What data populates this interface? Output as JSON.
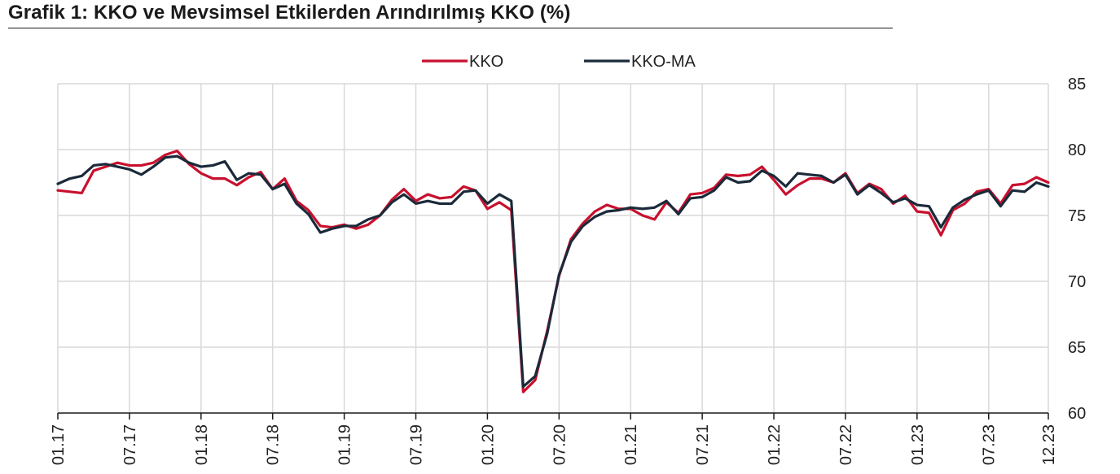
{
  "title": "Grafik 1: KKO ve Mevsimsel Etkilerden Arındırılmış KKO (%)",
  "colors": {
    "kko": "#c8102e",
    "kko_ma": "#1b2a3a",
    "grid": "#d9d9d9",
    "axis": "#1a1a1a"
  },
  "chart_data": {
    "type": "line",
    "title": "Grafik 1: KKO ve Mevsimsel Etkilerden Arındırılmış KKO (%)",
    "xlabel": "",
    "ylabel": "",
    "ylim": [
      60,
      85
    ],
    "yticks": [
      "60",
      "65",
      "70",
      "75",
      "80",
      "85"
    ],
    "y_axis_side": "right",
    "grid": true,
    "legend_position": "top-center",
    "x_start": "01.17",
    "x_end": "12.23",
    "xtick_labels": [
      "01.17",
      "07.17",
      "01.18",
      "07.18",
      "01.19",
      "07.19",
      "01.20",
      "07.20",
      "01.21",
      "07.21",
      "01.22",
      "07.22",
      "01.23",
      "07.23",
      "12.23"
    ],
    "series": [
      {
        "name": "KKO",
        "color": "#c8102e",
        "values": [
          76.9,
          76.8,
          76.7,
          78.4,
          78.7,
          79.0,
          78.8,
          78.8,
          79.0,
          79.6,
          79.9,
          78.9,
          78.2,
          77.8,
          77.8,
          77.3,
          77.9,
          78.3,
          77.0,
          77.8,
          76.1,
          75.4,
          74.2,
          74.1,
          74.3,
          74.0,
          74.3,
          75.0,
          76.2,
          77.0,
          76.1,
          76.6,
          76.3,
          76.4,
          77.2,
          76.9,
          75.5,
          76.0,
          75.4,
          61.6,
          62.5,
          66.2,
          70.4,
          73.2,
          74.4,
          75.3,
          75.8,
          75.5,
          75.5,
          75.0,
          74.7,
          76.0,
          75.2,
          76.6,
          76.7,
          77.1,
          78.1,
          78.0,
          78.1,
          78.7,
          77.7,
          76.6,
          77.3,
          77.8,
          77.8,
          77.5,
          78.2,
          76.7,
          77.4,
          77.0,
          75.9,
          76.5,
          75.3,
          75.2,
          73.5,
          75.4,
          75.9,
          76.8,
          77.0,
          75.9,
          77.3,
          77.4,
          77.9,
          77.5
        ]
      },
      {
        "name": "KKO-MA",
        "color": "#1b2a3a",
        "values": [
          77.4,
          77.8,
          78.0,
          78.8,
          78.9,
          78.7,
          78.5,
          78.1,
          78.7,
          79.4,
          79.5,
          79.0,
          78.7,
          78.8,
          79.1,
          77.7,
          78.2,
          78.1,
          77.0,
          77.4,
          75.9,
          75.1,
          73.7,
          74.0,
          74.2,
          74.2,
          74.7,
          75.0,
          76.0,
          76.6,
          75.9,
          76.1,
          75.9,
          75.9,
          76.8,
          76.9,
          75.9,
          76.6,
          76.1,
          62.0,
          62.8,
          66.0,
          70.5,
          73.0,
          74.2,
          74.9,
          75.3,
          75.4,
          75.6,
          75.5,
          75.6,
          76.1,
          75.1,
          76.3,
          76.4,
          76.9,
          77.9,
          77.5,
          77.6,
          78.4,
          78.0,
          77.2,
          78.2,
          78.1,
          78.0,
          77.5,
          78.1,
          76.6,
          77.3,
          76.7,
          76.0,
          76.3,
          75.8,
          75.7,
          74.1,
          75.6,
          76.2,
          76.6,
          76.9,
          75.7,
          76.9,
          76.8,
          77.5,
          77.2
        ]
      }
    ]
  }
}
